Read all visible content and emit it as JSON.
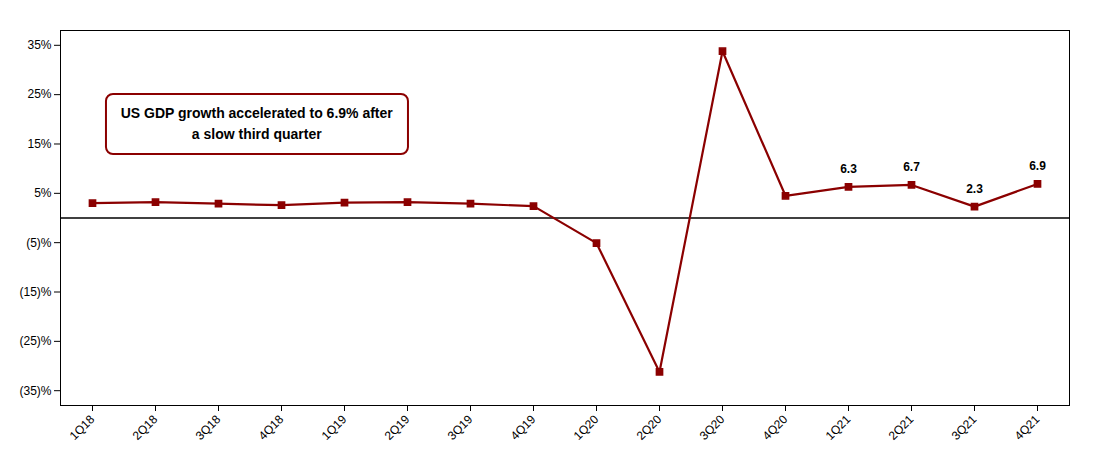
{
  "chart_data": {
    "type": "line",
    "categories": [
      "1Q18",
      "2Q18",
      "3Q18",
      "4Q18",
      "1Q19",
      "2Q19",
      "3Q19",
      "4Q19",
      "1Q20",
      "2Q20",
      "3Q20",
      "4Q20",
      "1Q21",
      "2Q21",
      "3Q21",
      "4Q21"
    ],
    "values": [
      3.0,
      3.2,
      2.9,
      2.6,
      3.1,
      3.2,
      2.9,
      2.4,
      -5.1,
      -31.2,
      33.8,
      4.5,
      6.3,
      6.7,
      2.3,
      6.9
    ],
    "color": "#8B0000",
    "marker": "square",
    "ylim": [
      -38,
      38
    ],
    "yticks": [
      {
        "value": -35,
        "label": "(35)%"
      },
      {
        "value": -25,
        "label": "(25)%"
      },
      {
        "value": -15,
        "label": "(15)%"
      },
      {
        "value": -5,
        "label": "(5)%"
      },
      {
        "value": 5,
        "label": "5%"
      },
      {
        "value": 15,
        "label": "15%"
      },
      {
        "value": 25,
        "label": "25%"
      },
      {
        "value": 35,
        "label": "35%"
      }
    ],
    "grid": false,
    "annotations": [
      {
        "x": "1Q21",
        "y": 6.3,
        "text": "6.3"
      },
      {
        "x": "2Q21",
        "y": 6.7,
        "text": "6.7"
      },
      {
        "x": "3Q21",
        "y": 2.3,
        "text": "2.3"
      },
      {
        "x": "4Q21",
        "y": 6.9,
        "text": "6.9"
      },
      {
        "text": "US GDP growth accelerated to 6.9% after\na slow third quarter",
        "color": "#8B0000"
      }
    ]
  }
}
